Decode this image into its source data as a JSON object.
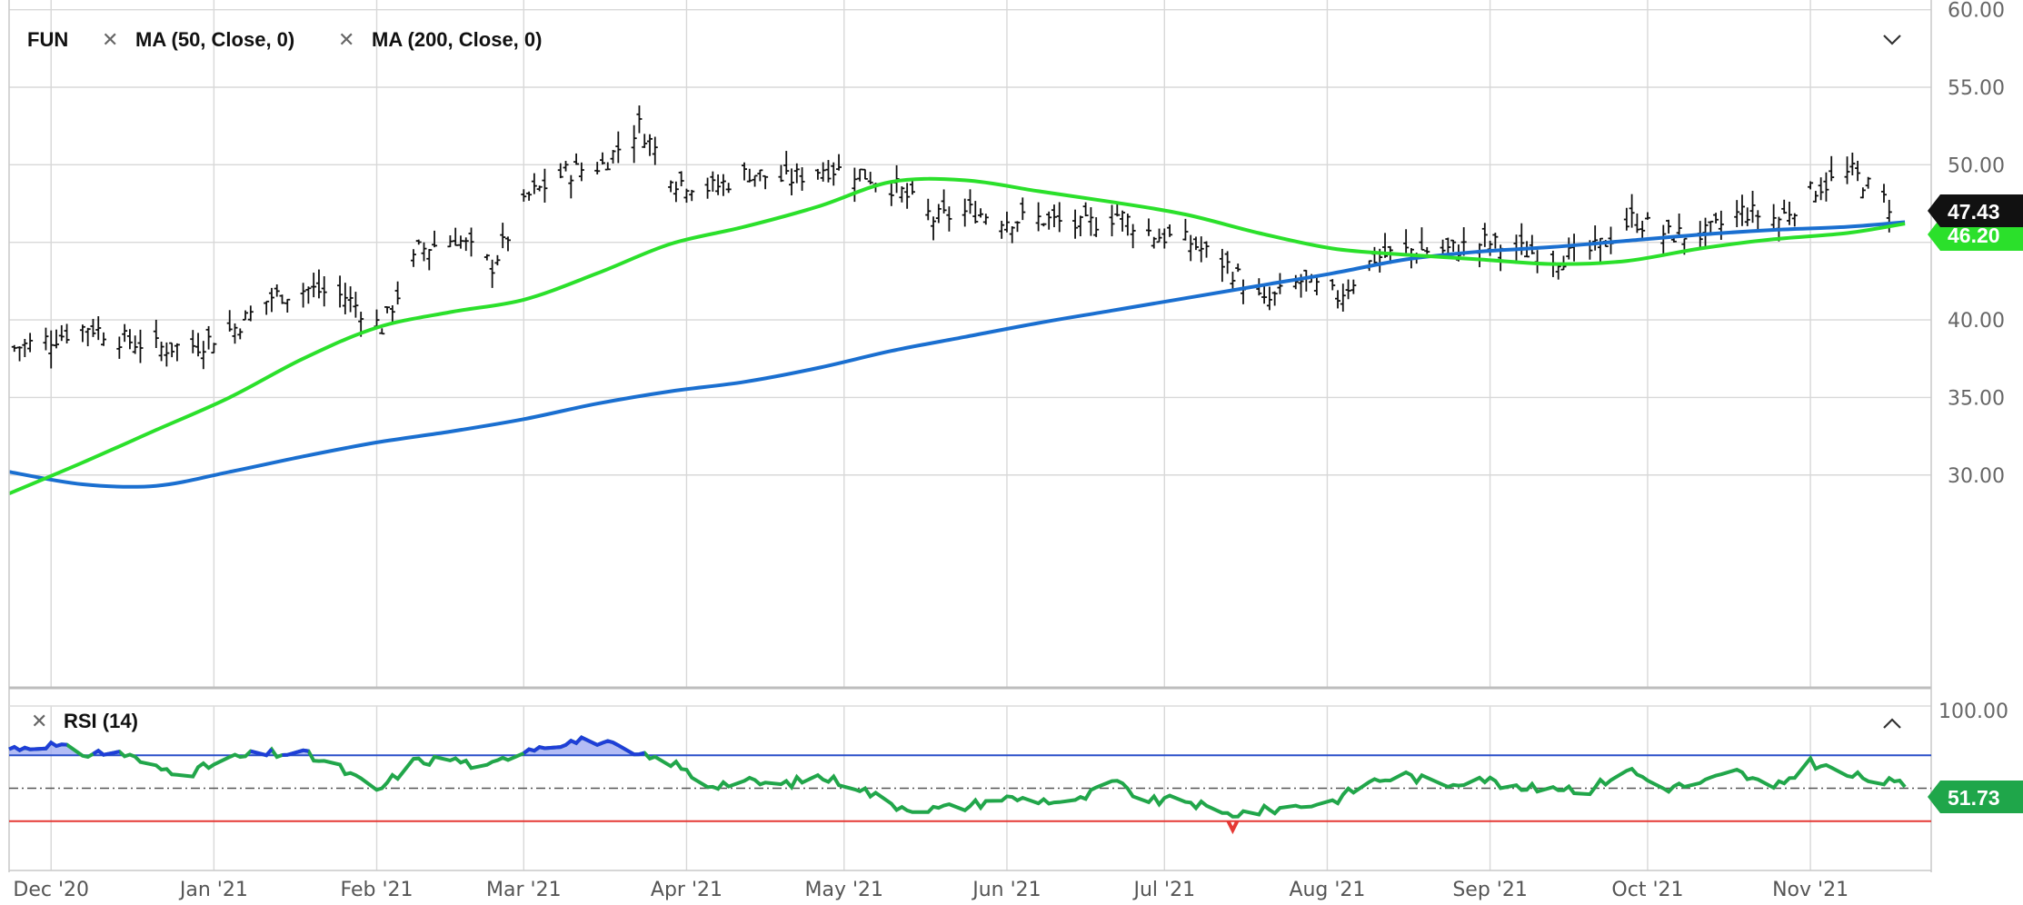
{
  "main_panel": {
    "symbol": "FUN",
    "overlays": [
      {
        "label": "MA (50, Close, 0)",
        "color": "#2be02b"
      },
      {
        "label": "MA (200, Close, 0)",
        "color": "#1a6fd0"
      }
    ],
    "close_badge": "47.43",
    "ma50_badge": "46.20"
  },
  "rsi_panel": {
    "label": "RSI (14)",
    "value_badge": "51.73",
    "top_tick": "100.00",
    "overbought": 70,
    "oversold": 30,
    "mid": 50
  },
  "colors": {
    "price_bar": "#111111",
    "ma50": "#2be02b",
    "ma200": "#1a6fd0",
    "rsi_line": "#21a64a",
    "rsi_fill_over": "#9aa6f2",
    "rsi_over_line": "#1f3ed8",
    "overbought_line": "#2a4fc9",
    "oversold_line": "#e53935",
    "badge_close": "#111111",
    "badge_ma50": "#2be02b",
    "badge_rsi": "#1fa64a"
  },
  "icons": {
    "remove": "close-icon",
    "collapse": "chevron-down-icon",
    "expand": "chevron-up-icon"
  },
  "chart_data": [
    {
      "type": "line",
      "panel": "price",
      "title": "FUN",
      "y_ticks": [
        "60.00",
        "55.00",
        "50.00",
        "45.00",
        "40.00",
        "35.00",
        "30.00"
      ],
      "ylim": [
        25.5,
        60
      ],
      "grid": true,
      "x_ticks": [
        "Dec '20",
        "Jan '21",
        "Feb '21",
        "Mar '21",
        "Apr '21",
        "May '21",
        "Jun '21",
        "Jul '21",
        "Aug '21",
        "Sep '21",
        "Oct '21",
        "Nov '21"
      ],
      "x_range": [
        "2020-11-23",
        "2021-11-19"
      ],
      "ohlc_close": [
        [
          "2020-11-24",
          38.2
        ],
        [
          "2020-12-01",
          38.8
        ],
        [
          "2020-12-08",
          39.6
        ],
        [
          "2020-12-15",
          38.7
        ],
        [
          "2020-12-22",
          38.2
        ],
        [
          "2020-12-29",
          38.4
        ],
        [
          "2021-01-05",
          39.5
        ],
        [
          "2021-01-12",
          41.5
        ],
        [
          "2021-01-19",
          42.0
        ],
        [
          "2021-01-26",
          41.5
        ],
        [
          "2021-02-02",
          39.5
        ],
        [
          "2021-02-09",
          44.5
        ],
        [
          "2021-02-16",
          45.3
        ],
        [
          "2021-02-23",
          43.5
        ],
        [
          "2021-03-02",
          48.0
        ],
        [
          "2021-03-09",
          49.5
        ],
        [
          "2021-03-16",
          50.0
        ],
        [
          "2021-03-23",
          52.5
        ],
        [
          "2021-03-30",
          49.0
        ],
        [
          "2021-04-06",
          48.5
        ],
        [
          "2021-04-13",
          49.5
        ],
        [
          "2021-04-20",
          49.0
        ],
        [
          "2021-04-27",
          49.8
        ],
        [
          "2021-05-04",
          49.5
        ],
        [
          "2021-05-11",
          48.5
        ],
        [
          "2021-05-18",
          46.5
        ],
        [
          "2021-05-25",
          47.0
        ],
        [
          "2021-06-01",
          46.5
        ],
        [
          "2021-06-08",
          46.5
        ],
        [
          "2021-06-15",
          46.0
        ],
        [
          "2021-06-22",
          46.8
        ],
        [
          "2021-06-29",
          45.5
        ],
        [
          "2021-07-06",
          45.0
        ],
        [
          "2021-07-13",
          43.5
        ],
        [
          "2021-07-20",
          41.0
        ],
        [
          "2021-07-27",
          42.5
        ],
        [
          "2021-08-03",
          41.5
        ],
        [
          "2021-08-10",
          44.0
        ],
        [
          "2021-08-17",
          44.5
        ],
        [
          "2021-08-24",
          44.5
        ],
        [
          "2021-08-31",
          45.0
        ],
        [
          "2021-09-07",
          44.5
        ],
        [
          "2021-09-14",
          44.0
        ],
        [
          "2021-09-21",
          44.5
        ],
        [
          "2021-09-28",
          46.5
        ],
        [
          "2021-10-05",
          45.5
        ],
        [
          "2021-10-12",
          45.5
        ],
        [
          "2021-10-19",
          47.0
        ],
        [
          "2021-10-26",
          46.5
        ],
        [
          "2021-11-02",
          48.5
        ],
        [
          "2021-11-09",
          49.5
        ],
        [
          "2021-11-16",
          47.43
        ]
      ],
      "series": [
        {
          "name": "MA (50, Close, 0)",
          "x": [
            "2020-11-23",
            "2020-12-07",
            "2020-12-21",
            "2021-01-04",
            "2021-01-18",
            "2021-02-01",
            "2021-02-15",
            "2021-03-01",
            "2021-03-15",
            "2021-03-29",
            "2021-04-12",
            "2021-04-26",
            "2021-05-10",
            "2021-05-24",
            "2021-06-07",
            "2021-06-21",
            "2021-07-05",
            "2021-07-19",
            "2021-08-02",
            "2021-08-16",
            "2021-08-30",
            "2021-09-13",
            "2021-09-27",
            "2021-10-11",
            "2021-10-25",
            "2021-11-08",
            "2021-11-19"
          ],
          "values": [
            28.8,
            30.8,
            32.9,
            35.0,
            37.5,
            39.5,
            40.5,
            41.3,
            43.0,
            44.9,
            46.0,
            47.3,
            48.9,
            49.0,
            48.3,
            47.6,
            46.8,
            45.6,
            44.6,
            44.2,
            43.9,
            43.6,
            43.8,
            44.6,
            45.2,
            45.6,
            46.2
          ]
        },
        {
          "name": "MA (200, Close, 0)",
          "x": [
            "2020-11-23",
            "2020-12-07",
            "2020-12-21",
            "2021-01-04",
            "2021-01-18",
            "2021-02-01",
            "2021-02-15",
            "2021-03-01",
            "2021-03-15",
            "2021-03-29",
            "2021-04-12",
            "2021-04-26",
            "2021-05-10",
            "2021-05-24",
            "2021-06-07",
            "2021-06-21",
            "2021-07-05",
            "2021-07-19",
            "2021-08-02",
            "2021-08-16",
            "2021-08-30",
            "2021-09-13",
            "2021-09-27",
            "2021-10-11",
            "2021-10-25",
            "2021-11-08",
            "2021-11-19"
          ],
          "values": [
            30.2,
            29.4,
            29.3,
            30.2,
            31.2,
            32.1,
            32.8,
            33.6,
            34.6,
            35.4,
            36.0,
            36.9,
            38.0,
            38.9,
            39.8,
            40.6,
            41.4,
            42.2,
            43.0,
            43.9,
            44.4,
            44.7,
            45.1,
            45.5,
            45.8,
            46.0,
            46.3
          ]
        }
      ]
    },
    {
      "type": "line",
      "panel": "rsi",
      "title": "RSI (14)",
      "ylim": [
        0,
        100
      ],
      "y_ticks": [
        "100.00"
      ],
      "reference_lines": [
        70,
        50,
        30
      ],
      "series": [
        {
          "name": "RSI (14)",
          "x": [
            "2020-11-23",
            "2020-11-30",
            "2020-12-07",
            "2020-12-14",
            "2020-12-21",
            "2020-12-28",
            "2021-01-04",
            "2021-01-11",
            "2021-01-18",
            "2021-01-25",
            "2021-02-01",
            "2021-02-08",
            "2021-02-15",
            "2021-02-22",
            "2021-03-01",
            "2021-03-08",
            "2021-03-15",
            "2021-03-22",
            "2021-03-29",
            "2021-04-05",
            "2021-04-12",
            "2021-04-19",
            "2021-04-26",
            "2021-05-03",
            "2021-05-10",
            "2021-05-17",
            "2021-05-24",
            "2021-05-31",
            "2021-06-07",
            "2021-06-14",
            "2021-06-21",
            "2021-06-28",
            "2021-07-05",
            "2021-07-12",
            "2021-07-19",
            "2021-07-26",
            "2021-08-02",
            "2021-08-09",
            "2021-08-16",
            "2021-08-23",
            "2021-08-30",
            "2021-09-06",
            "2021-09-13",
            "2021-09-20",
            "2021-09-27",
            "2021-10-04",
            "2021-10-11",
            "2021-10-18",
            "2021-10-25",
            "2021-11-01",
            "2021-11-08",
            "2021-11-19"
          ],
          "values": [
            74,
            77,
            71,
            72,
            62,
            60,
            68,
            71,
            71,
            62,
            48,
            66,
            68,
            62,
            74,
            78,
            79,
            70,
            66,
            52,
            54,
            52,
            57,
            52,
            40,
            37,
            39,
            44,
            43,
            41,
            54,
            42,
            43,
            34,
            36,
            39,
            42,
            54,
            58,
            52,
            57,
            49,
            51,
            49,
            62,
            50,
            53,
            60,
            49,
            66,
            58,
            51.73
          ]
        }
      ]
    }
  ]
}
